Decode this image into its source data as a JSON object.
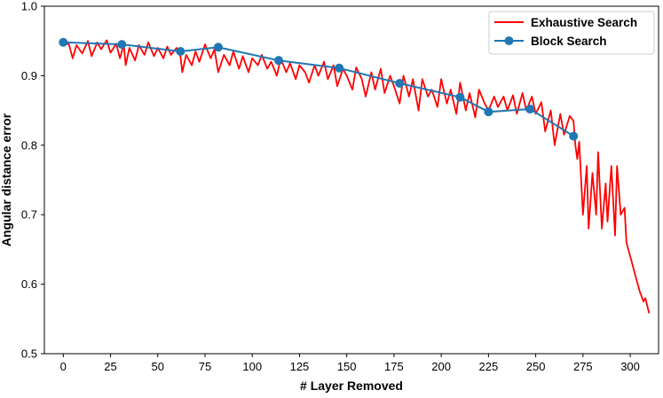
{
  "chart_data": {
    "type": "line",
    "title": "",
    "xlabel": "# Layer Removed",
    "ylabel": "Angular distance error",
    "xlim": [
      -10,
      315
    ],
    "ylim": [
      0.5,
      1.0
    ],
    "xticks": [
      0,
      25,
      50,
      75,
      100,
      125,
      150,
      175,
      200,
      225,
      250,
      275,
      300
    ],
    "yticks": [
      0.5,
      0.6,
      0.7,
      0.8,
      0.9,
      1.0
    ],
    "tick_labels_x": [
      "0",
      "25",
      "50",
      "75",
      "100",
      "125",
      "150",
      "175",
      "200",
      "225",
      "250",
      "275",
      "300"
    ],
    "tick_labels_y": [
      "0.5",
      "0.6",
      "0.7",
      "0.8",
      "0.9",
      "1.0"
    ],
    "grid": false,
    "legend_position": "top-right",
    "series": [
      {
        "name": "Exhaustive Search",
        "color": "#ff0000",
        "marker": "none",
        "x": [
          0,
          3,
          5,
          7,
          10,
          13,
          15,
          18,
          20,
          23,
          25,
          28,
          30,
          32,
          33,
          35,
          38,
          40,
          43,
          45,
          48,
          50,
          53,
          55,
          57,
          60,
          62,
          63,
          65,
          68,
          70,
          72,
          75,
          78,
          80,
          82,
          85,
          88,
          90,
          93,
          95,
          98,
          100,
          103,
          105,
          108,
          110,
          113,
          115,
          118,
          120,
          123,
          125,
          128,
          130,
          133,
          135,
          138,
          140,
          143,
          145,
          148,
          150,
          153,
          155,
          158,
          160,
          163,
          165,
          168,
          170,
          173,
          175,
          178,
          180,
          183,
          185,
          188,
          190,
          193,
          195,
          198,
          200,
          203,
          205,
          208,
          210,
          213,
          215,
          218,
          220,
          223,
          225,
          228,
          230,
          233,
          235,
          238,
          240,
          243,
          245,
          248,
          250,
          253,
          255,
          258,
          260,
          263,
          265,
          268,
          270,
          271,
          272,
          273,
          275,
          277,
          278,
          280,
          282,
          283,
          285,
          287,
          288,
          290,
          292,
          293,
          295,
          297,
          298,
          300,
          302,
          303,
          305,
          307,
          308,
          310
        ],
        "y": [
          0.948,
          0.945,
          0.925,
          0.944,
          0.932,
          0.95,
          0.928,
          0.948,
          0.938,
          0.951,
          0.933,
          0.946,
          0.925,
          0.945,
          0.915,
          0.94,
          0.922,
          0.944,
          0.93,
          0.948,
          0.928,
          0.94,
          0.925,
          0.942,
          0.93,
          0.94,
          0.928,
          0.905,
          0.93,
          0.915,
          0.935,
          0.92,
          0.945,
          0.925,
          0.938,
          0.905,
          0.93,
          0.915,
          0.935,
          0.91,
          0.928,
          0.905,
          0.925,
          0.915,
          0.93,
          0.91,
          0.92,
          0.9,
          0.925,
          0.905,
          0.918,
          0.895,
          0.915,
          0.905,
          0.89,
          0.915,
          0.9,
          0.92,
          0.895,
          0.915,
          0.885,
          0.91,
          0.9,
          0.88,
          0.912,
          0.895,
          0.87,
          0.905,
          0.88,
          0.91,
          0.875,
          0.9,
          0.885,
          0.86,
          0.9,
          0.87,
          0.895,
          0.85,
          0.895,
          0.87,
          0.88,
          0.855,
          0.895,
          0.86,
          0.88,
          0.845,
          0.89,
          0.85,
          0.875,
          0.84,
          0.88,
          0.86,
          0.85,
          0.87,
          0.855,
          0.87,
          0.85,
          0.872,
          0.845,
          0.875,
          0.85,
          0.87,
          0.845,
          0.862,
          0.82,
          0.85,
          0.8,
          0.845,
          0.815,
          0.842,
          0.835,
          0.8,
          0.78,
          0.805,
          0.7,
          0.77,
          0.68,
          0.76,
          0.7,
          0.79,
          0.68,
          0.745,
          0.69,
          0.77,
          0.67,
          0.77,
          0.7,
          0.71,
          0.66,
          0.64,
          0.62,
          0.61,
          0.59,
          0.575,
          0.58,
          0.558
        ]
      },
      {
        "name": "Block Search",
        "color": "#1f77b4",
        "marker": "circle",
        "x": [
          0,
          31,
          62,
          82,
          114,
          146,
          178,
          210,
          225,
          247,
          270
        ],
        "y": [
          0.948,
          0.945,
          0.935,
          0.941,
          0.922,
          0.911,
          0.889,
          0.869,
          0.848,
          0.852,
          0.813
        ]
      }
    ]
  }
}
